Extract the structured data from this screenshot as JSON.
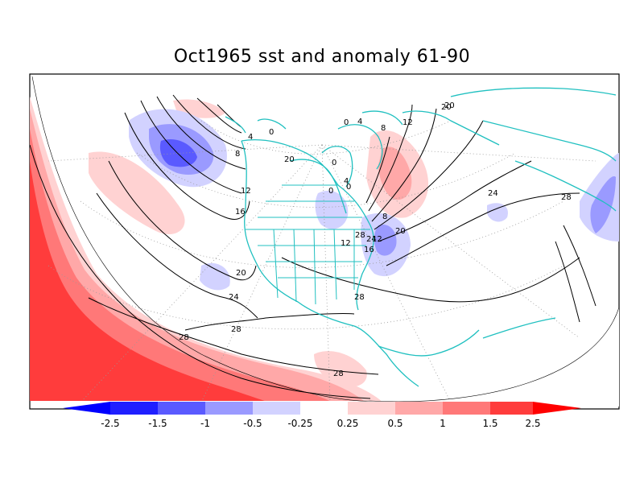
{
  "title": "Oct1965 sst and anomaly 61-90",
  "colors": {
    "coast": "#20c0c0",
    "contour": "#000000",
    "neg_strong": "#1f1fff",
    "neg_mid": "#5a5aff",
    "neg_light": "#9a9aff",
    "neg_pale": "#d2d2ff",
    "pos_pale": "#ffd2d2",
    "pos_light": "#ffa8a8",
    "pos_mid": "#ff7878",
    "pos_strong": "#ff3c3c",
    "pos_max": "#ff0000",
    "neg_max": "#0000ff"
  },
  "colorbar": {
    "ticks": [
      "-2.5",
      "-1.5",
      "-1",
      "-0.5",
      "-0.25",
      "0.25",
      "0.5",
      "1",
      "1.5",
      "2.5"
    ]
  },
  "contour_labels": [
    "28",
    "28",
    "28",
    "28",
    "24",
    "20",
    "16",
    "12",
    "8",
    "4",
    "0",
    "20",
    "24",
    "28",
    "12",
    "16",
    "20",
    "8",
    "4",
    "0",
    "0",
    "4",
    "8",
    "12",
    "20",
    "24",
    "28",
    "0",
    "0",
    "20",
    "12"
  ]
}
